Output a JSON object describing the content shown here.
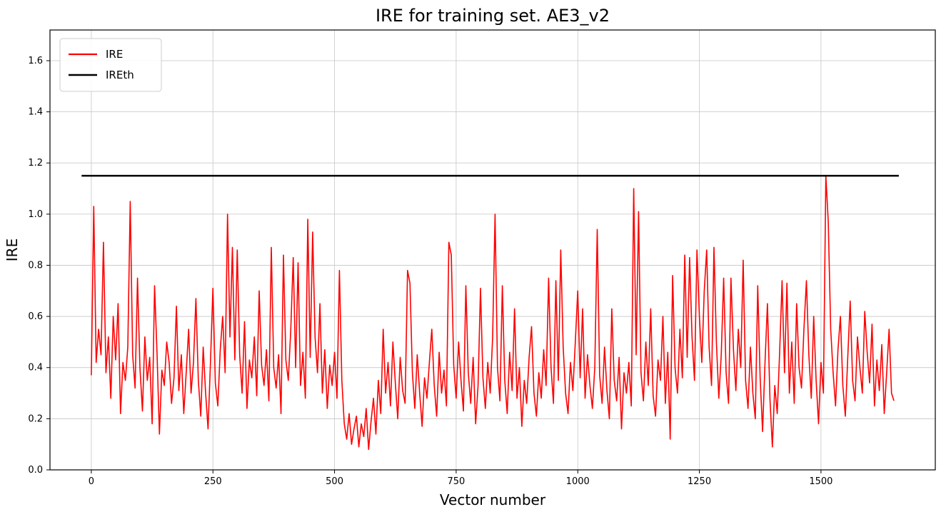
{
  "title": "IRE for training set. AE3_v2",
  "chart_data": {
    "type": "line",
    "title": "IRE for training set. AE3_v2",
    "xlabel": "Vector number",
    "ylabel": "IRE",
    "xlim": [
      -85,
      1735
    ],
    "ylim": [
      0,
      1.72
    ],
    "xticks": [
      0,
      250,
      500,
      750,
      1000,
      1250,
      1500
    ],
    "yticks": [
      0.0,
      0.2,
      0.4,
      0.6,
      0.8,
      1.0,
      1.2,
      1.4,
      1.6
    ],
    "grid": true,
    "legend": {
      "position": "upper-left",
      "entries": [
        {
          "label": "IRE",
          "color": "#ff0000"
        },
        {
          "label": "IREth",
          "color": "#000000"
        }
      ]
    },
    "series": [
      {
        "name": "IRE",
        "color": "#ff0000",
        "linewidth": 1.6,
        "x_start": 0,
        "x_step": 5,
        "y": [
          0.37,
          1.03,
          0.42,
          0.55,
          0.45,
          0.89,
          0.38,
          0.52,
          0.28,
          0.6,
          0.43,
          0.65,
          0.22,
          0.42,
          0.35,
          0.48,
          1.05,
          0.45,
          0.32,
          0.75,
          0.4,
          0.23,
          0.52,
          0.35,
          0.44,
          0.18,
          0.72,
          0.46,
          0.14,
          0.39,
          0.33,
          0.5,
          0.42,
          0.26,
          0.36,
          0.64,
          0.31,
          0.45,
          0.22,
          0.38,
          0.55,
          0.3,
          0.42,
          0.67,
          0.35,
          0.21,
          0.48,
          0.3,
          0.16,
          0.42,
          0.71,
          0.34,
          0.25,
          0.47,
          0.6,
          0.38,
          1.0,
          0.52,
          0.87,
          0.43,
          0.86,
          0.45,
          0.3,
          0.58,
          0.24,
          0.43,
          0.36,
          0.52,
          0.29,
          0.7,
          0.41,
          0.33,
          0.47,
          0.27,
          0.87,
          0.4,
          0.32,
          0.45,
          0.22,
          0.84,
          0.43,
          0.35,
          0.55,
          0.83,
          0.4,
          0.81,
          0.33,
          0.46,
          0.28,
          0.98,
          0.44,
          0.93,
          0.52,
          0.38,
          0.65,
          0.3,
          0.47,
          0.24,
          0.41,
          0.33,
          0.46,
          0.28,
          0.78,
          0.35,
          0.18,
          0.12,
          0.22,
          0.1,
          0.16,
          0.21,
          0.09,
          0.18,
          0.13,
          0.24,
          0.08,
          0.19,
          0.28,
          0.14,
          0.35,
          0.22,
          0.55,
          0.3,
          0.42,
          0.25,
          0.5,
          0.34,
          0.2,
          0.44,
          0.31,
          0.26,
          0.78,
          0.73,
          0.38,
          0.24,
          0.45,
          0.3,
          0.17,
          0.36,
          0.28,
          0.42,
          0.55,
          0.33,
          0.21,
          0.46,
          0.3,
          0.39,
          0.25,
          0.89,
          0.84,
          0.41,
          0.28,
          0.5,
          0.35,
          0.23,
          0.72,
          0.38,
          0.26,
          0.44,
          0.18,
          0.33,
          0.71,
          0.36,
          0.24,
          0.42,
          0.3,
          0.52,
          1.0,
          0.4,
          0.27,
          0.72,
          0.35,
          0.22,
          0.46,
          0.31,
          0.63,
          0.28,
          0.4,
          0.17,
          0.35,
          0.26,
          0.44,
          0.56,
          0.3,
          0.21,
          0.38,
          0.28,
          0.47,
          0.33,
          0.75,
          0.4,
          0.26,
          0.74,
          0.35,
          0.86,
          0.48,
          0.3,
          0.22,
          0.42,
          0.31,
          0.5,
          0.7,
          0.36,
          0.63,
          0.28,
          0.45,
          0.33,
          0.24,
          0.4,
          0.94,
          0.37,
          0.26,
          0.48,
          0.31,
          0.2,
          0.63,
          0.35,
          0.27,
          0.44,
          0.16,
          0.38,
          0.3,
          0.42,
          0.25,
          1.1,
          0.45,
          1.01,
          0.38,
          0.27,
          0.5,
          0.33,
          0.63,
          0.29,
          0.21,
          0.43,
          0.35,
          0.6,
          0.26,
          0.46,
          0.12,
          0.76,
          0.4,
          0.3,
          0.55,
          0.36,
          0.84,
          0.44,
          0.83,
          0.52,
          0.35,
          0.86,
          0.6,
          0.42,
          0.7,
          0.86,
          0.48,
          0.33,
          0.87,
          0.5,
          0.28,
          0.45,
          0.75,
          0.38,
          0.26,
          0.75,
          0.47,
          0.31,
          0.55,
          0.4,
          0.82,
          0.35,
          0.24,
          0.48,
          0.3,
          0.2,
          0.72,
          0.36,
          0.15,
          0.42,
          0.65,
          0.28,
          0.09,
          0.33,
          0.22,
          0.46,
          0.74,
          0.38,
          0.73,
          0.3,
          0.5,
          0.26,
          0.65,
          0.4,
          0.32,
          0.55,
          0.74,
          0.45,
          0.28,
          0.6,
          0.35,
          0.18,
          0.42,
          0.3,
          1.15,
          0.97,
          0.55,
          0.38,
          0.25,
          0.47,
          0.6,
          0.33,
          0.21,
          0.44,
          0.66,
          0.35,
          0.27,
          0.52,
          0.4,
          0.3,
          0.62,
          0.46,
          0.34,
          0.57,
          0.25,
          0.43,
          0.31,
          0.49,
          0.22,
          0.38,
          0.55,
          0.3,
          0.27
        ]
      },
      {
        "name": "IREth",
        "color": "#000000",
        "linewidth": 2.5,
        "threshold_y": 1.15,
        "x_start": -20,
        "x_end": 1660
      }
    ]
  },
  "colors": {
    "ire_line": "#ff0000",
    "ireth_line": "#000000",
    "grid": "#cccccc",
    "spine": "#000000",
    "legend_border": "#cccccc",
    "background": "#ffffff"
  }
}
